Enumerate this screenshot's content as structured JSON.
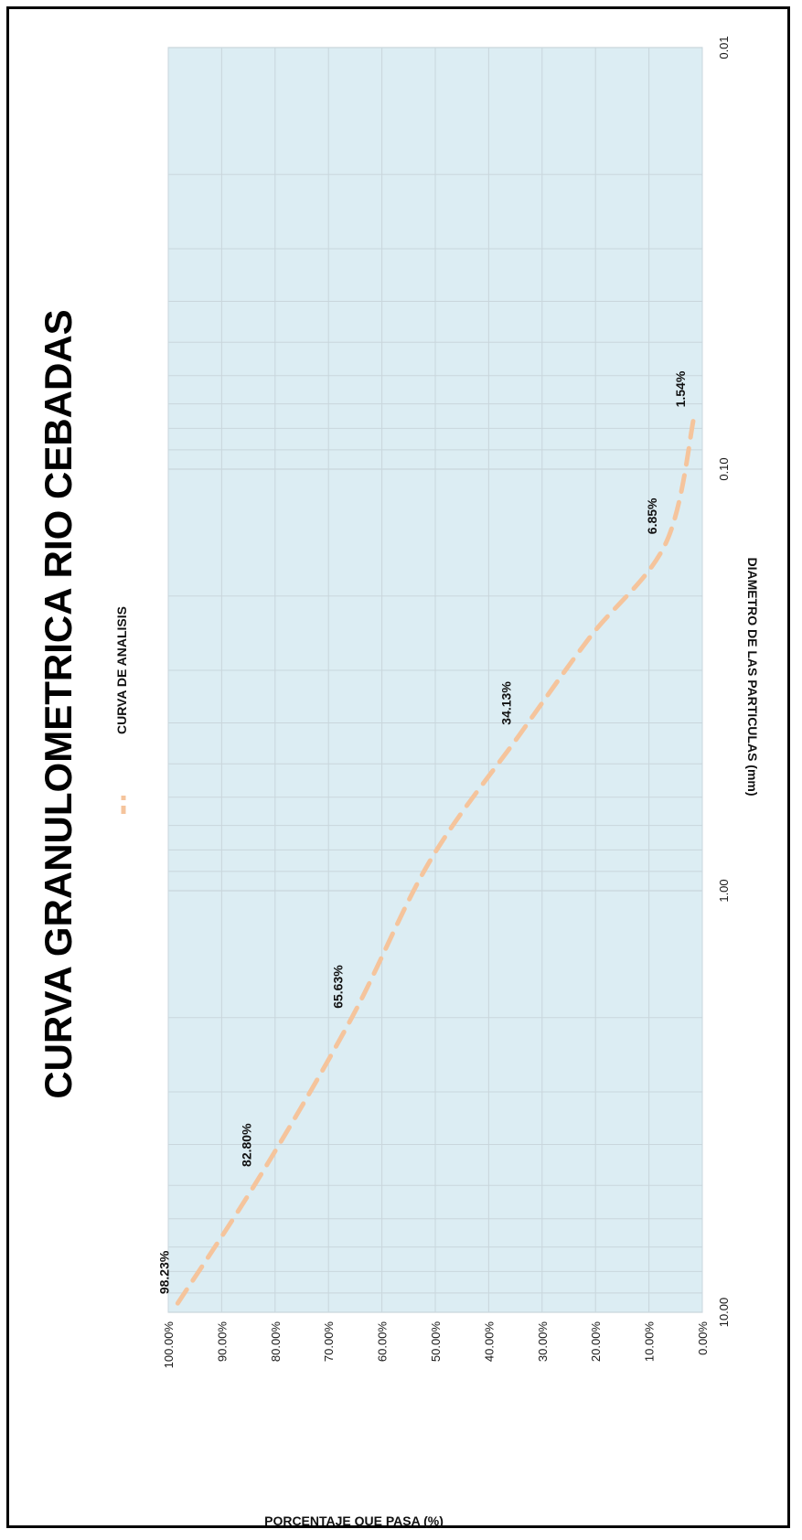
{
  "chart_data": {
    "type": "line",
    "title": "CURVA GRANULOMETRICA RIO CEBADAS",
    "xlabel": "DIAMETRO DE LAS PARTICULAS (mm)",
    "ylabel": "PORCENTAJE QUE PASA (%)",
    "x_scale": "log",
    "x_reversed": true,
    "xlim": [
      0.01,
      10
    ],
    "ylim": [
      0,
      100
    ],
    "x_ticks": [
      "10.00",
      "1.00",
      "0.10",
      "0.01"
    ],
    "y_ticks": [
      "0.00%",
      "10.00%",
      "20.00%",
      "30.00%",
      "40.00%",
      "50.00%",
      "60.00%",
      "70.00%",
      "80.00%",
      "90.00%",
      "100.00%"
    ],
    "grid": true,
    "legend": "top",
    "orientation": "rotated-90-clockwise",
    "series": [
      {
        "name": "CURVA DE ANALISIS",
        "color": "#f5c49c",
        "style": "dashed",
        "x": [
          9.52,
          4.75,
          2.0,
          0.85,
          0.425,
          0.25,
          0.15,
          0.075
        ],
        "y": [
          98.23,
          82.8,
          65.63,
          51.0,
          34.13,
          21.0,
          6.85,
          1.54
        ],
        "labels": [
          {
            "x": 9.52,
            "y": 98.23,
            "text": "98.23%"
          },
          {
            "x": 4.75,
            "y": 82.8,
            "text": "82.80%"
          },
          {
            "x": 2.0,
            "y": 65.63,
            "text": "65.63%"
          },
          {
            "x": 0.425,
            "y": 34.13,
            "text": "34.13%"
          },
          {
            "x": 0.15,
            "y": 6.85,
            "text": "6.85%"
          },
          {
            "x": 0.075,
            "y": 1.54,
            "text": "1.54%"
          }
        ]
      }
    ]
  },
  "colors": {
    "plot_background": "#dcedf3",
    "gridline": "#c9d6dc",
    "border": "#000000"
  }
}
